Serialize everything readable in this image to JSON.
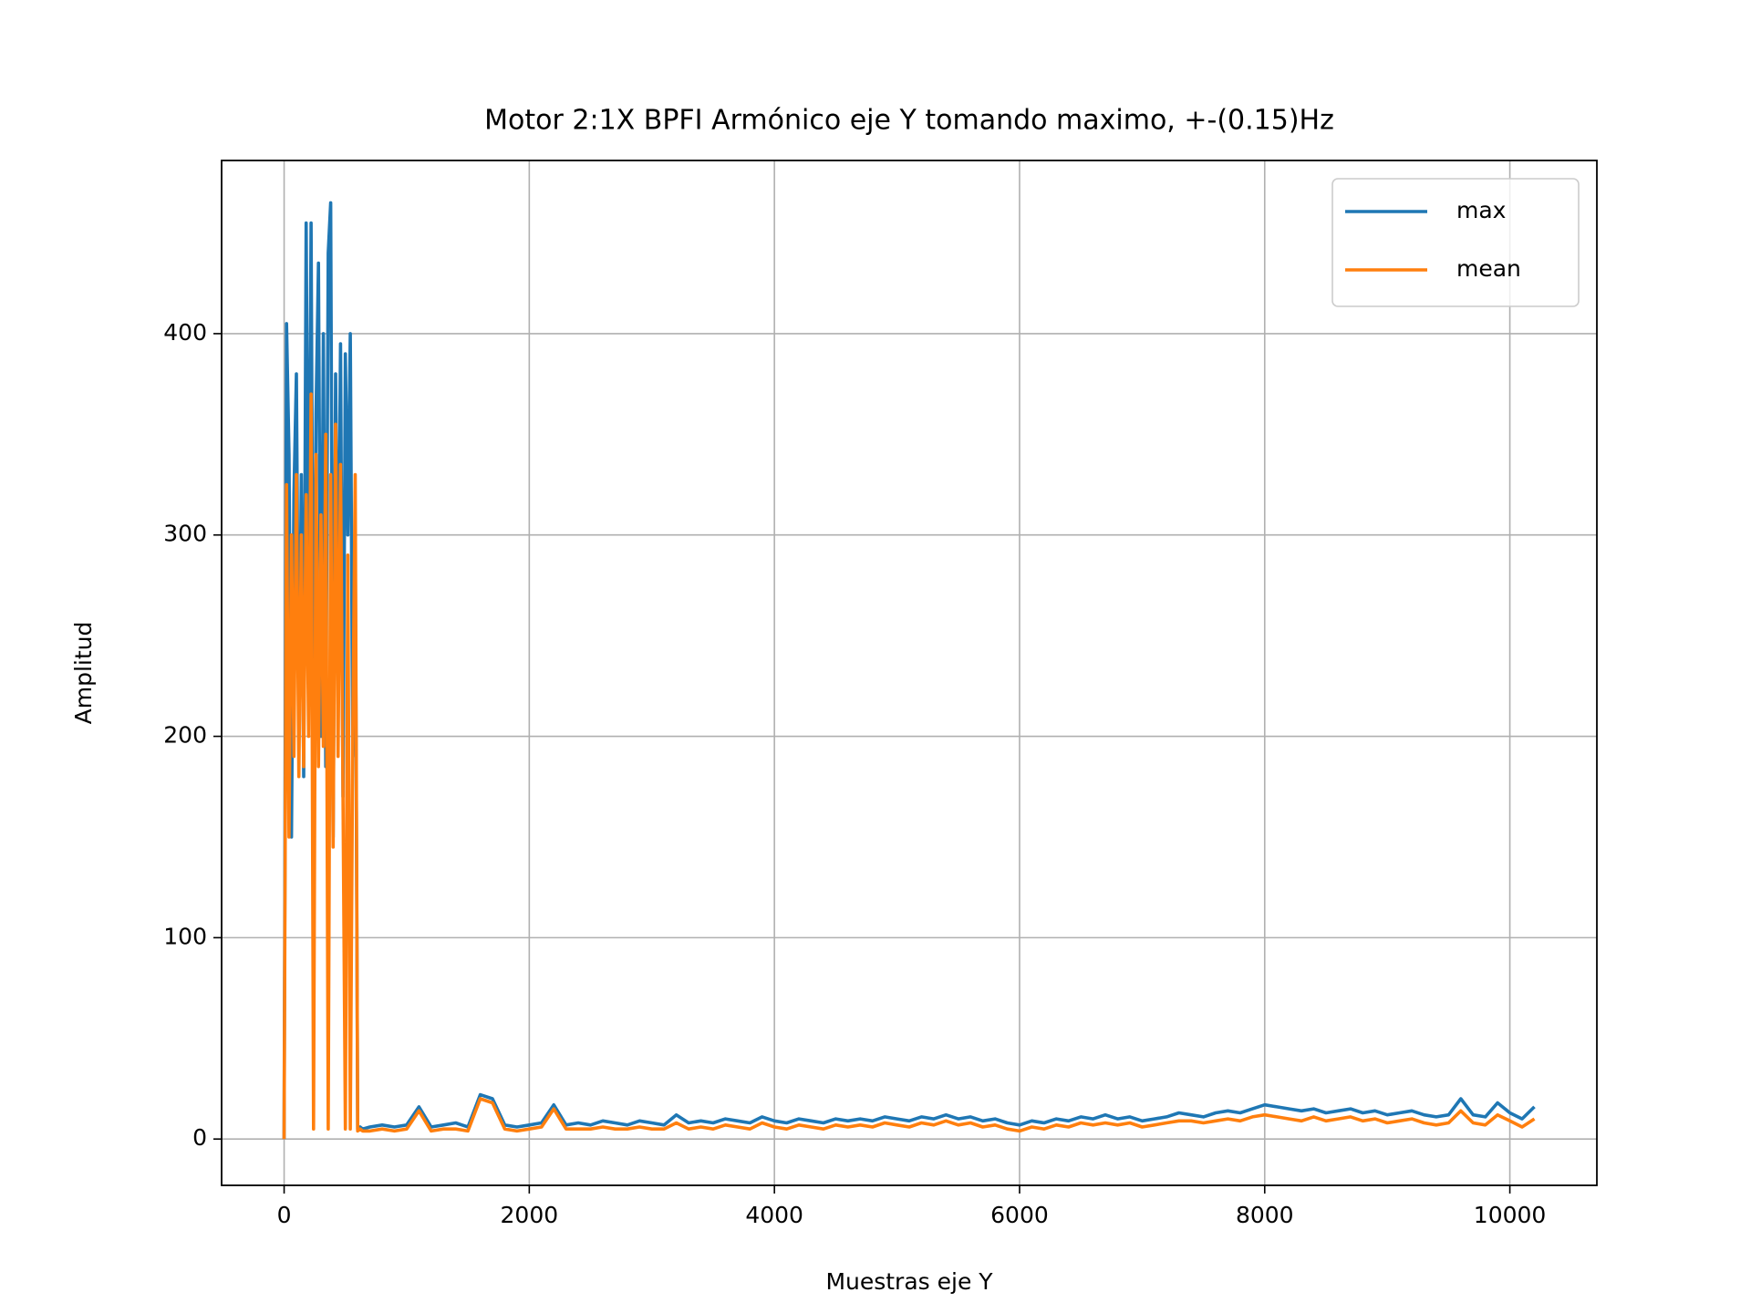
{
  "chart_data": {
    "type": "line",
    "title": "Motor 2:1X BPFI Armónico eje Y tomando maximo, +-(0.15)Hz",
    "x_label": "Muestras eje Y",
    "y_label": "Amplitud",
    "xlim": [
      -510,
      10710
    ],
    "ylim": [
      -23,
      486
    ],
    "xticks": [
      0,
      2000,
      4000,
      6000,
      8000,
      10000
    ],
    "yticks": [
      0,
      100,
      200,
      300,
      400
    ],
    "grid": true,
    "legend": "upper right",
    "x": [
      0,
      20,
      40,
      60,
      80,
      100,
      120,
      140,
      160,
      180,
      200,
      220,
      240,
      260,
      280,
      300,
      320,
      340,
      360,
      380,
      400,
      420,
      440,
      460,
      480,
      500,
      520,
      540,
      560,
      580,
      600,
      620,
      640,
      700,
      800,
      900,
      1000,
      1100,
      1200,
      1300,
      1400,
      1500,
      1600,
      1700,
      1800,
      1900,
      2000,
      2100,
      2200,
      2300,
      2400,
      2500,
      2600,
      2700,
      2800,
      2900,
      3000,
      3100,
      3200,
      3300,
      3400,
      3500,
      3600,
      3700,
      3800,
      3900,
      4000,
      4100,
      4200,
      4300,
      4400,
      4500,
      4600,
      4700,
      4800,
      4900,
      5000,
      5100,
      5200,
      5300,
      5400,
      5500,
      5600,
      5700,
      5800,
      5900,
      6000,
      6100,
      6200,
      6300,
      6400,
      6500,
      6600,
      6700,
      6800,
      6900,
      7000,
      7100,
      7200,
      7300,
      7400,
      7500,
      7600,
      7700,
      7800,
      7900,
      8000,
      8100,
      8200,
      8300,
      8400,
      8500,
      8600,
      8700,
      8800,
      8900,
      9000,
      9100,
      9200,
      9300,
      9400,
      9500,
      9600,
      9700,
      9800,
      9900,
      10000,
      10100,
      10200
    ],
    "series": [
      {
        "name": "max",
        "color": "#1f77b4",
        "values": [
          0,
          405,
          340,
          150,
          320,
          380,
          200,
          330,
          180,
          455,
          250,
          455,
          190,
          360,
          435,
          200,
          400,
          185,
          440,
          465,
          150,
          380,
          250,
          395,
          170,
          390,
          300,
          400,
          190,
          300,
          5,
          6,
          5,
          6,
          7,
          6,
          7,
          16,
          6,
          7,
          8,
          6,
          22,
          20,
          7,
          6,
          7,
          8,
          17,
          7,
          8,
          7,
          9,
          8,
          7,
          9,
          8,
          7,
          12,
          8,
          9,
          8,
          10,
          9,
          8,
          11,
          9,
          8,
          10,
          9,
          8,
          10,
          9,
          10,
          9,
          11,
          10,
          9,
          11,
          10,
          12,
          10,
          11,
          9,
          10,
          8,
          7,
          9,
          8,
          10,
          9,
          11,
          10,
          12,
          10,
          11,
          9,
          10,
          11,
          13,
          12,
          11,
          13,
          14,
          13,
          15,
          17,
          16,
          15,
          14,
          15,
          13,
          14,
          15,
          13,
          14,
          12,
          13,
          14,
          12,
          11,
          12,
          20,
          12,
          11,
          18,
          13,
          10,
          16
        ]
      },
      {
        "name": "mean",
        "color": "#ff7f0e",
        "values": [
          0,
          325,
          150,
          300,
          190,
          330,
          180,
          300,
          185,
          320,
          200,
          370,
          5,
          340,
          185,
          310,
          195,
          350,
          5,
          330,
          145,
          355,
          190,
          335,
          170,
          5,
          290,
          5,
          200,
          330,
          4,
          5,
          4,
          4,
          5,
          4,
          5,
          14,
          4,
          5,
          5,
          4,
          20,
          18,
          5,
          4,
          5,
          6,
          15,
          5,
          5,
          5,
          6,
          5,
          5,
          6,
          5,
          5,
          8,
          5,
          6,
          5,
          7,
          6,
          5,
          8,
          6,
          5,
          7,
          6,
          5,
          7,
          6,
          7,
          6,
          8,
          7,
          6,
          8,
          7,
          9,
          7,
          8,
          6,
          7,
          5,
          4,
          6,
          5,
          7,
          6,
          8,
          7,
          8,
          7,
          8,
          6,
          7,
          8,
          9,
          9,
          8,
          9,
          10,
          9,
          11,
          12,
          11,
          10,
          9,
          11,
          9,
          10,
          11,
          9,
          10,
          8,
          9,
          10,
          8,
          7,
          8,
          14,
          8,
          7,
          12,
          9,
          6,
          10
        ]
      }
    ]
  }
}
